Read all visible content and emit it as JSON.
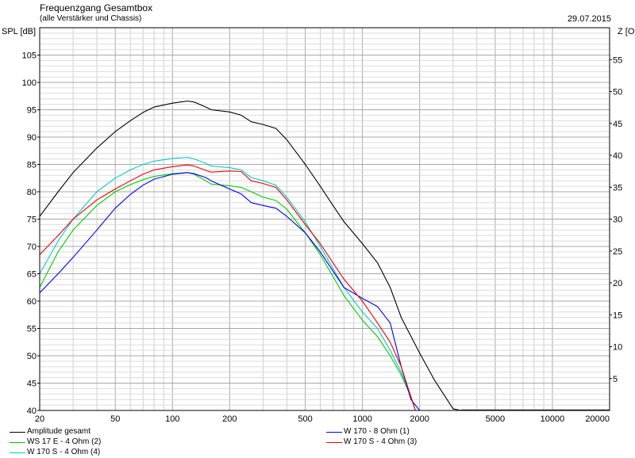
{
  "header": {
    "title": "Frequenzgang Gesamtbox",
    "subtitle": "(alle Verstärker und Chassis)",
    "date": "29.07.2015"
  },
  "chart_data": {
    "type": "line",
    "title": "Frequenzgang Gesamtbox",
    "subtitle": "(alle Verstärker und Chassis)",
    "xlabel": "",
    "ylabel": "SPL [dB]",
    "y2label": "Z [Oh",
    "xscale": "log",
    "xlim": [
      20,
      20000
    ],
    "ylim": [
      40,
      110
    ],
    "y2lim": [
      0,
      60
    ],
    "grid": true,
    "legend_position": "bottom",
    "x_ticks": [
      20,
      50,
      100,
      200,
      500,
      1000,
      2000,
      5000,
      10000,
      20000
    ],
    "y_ticks": [
      40,
      45,
      50,
      55,
      60,
      65,
      70,
      75,
      80,
      85,
      90,
      95,
      100,
      105
    ],
    "y2_ticks": [
      5,
      10,
      15,
      20,
      25,
      30,
      35,
      40,
      45,
      50,
      55
    ],
    "series": [
      {
        "name": "Amplitude gesamt",
        "color": "#000000",
        "points": [
          [
            20,
            75.5
          ],
          [
            25,
            80
          ],
          [
            30,
            83.5
          ],
          [
            40,
            88
          ],
          [
            50,
            91
          ],
          [
            60,
            93
          ],
          [
            70,
            94.5
          ],
          [
            80,
            95.5
          ],
          [
            100,
            96.2
          ],
          [
            120,
            96.6
          ],
          [
            130,
            96.4
          ],
          [
            150,
            95.5
          ],
          [
            160,
            95
          ],
          [
            200,
            94.6
          ],
          [
            230,
            94
          ],
          [
            260,
            92.8
          ],
          [
            300,
            92.3
          ],
          [
            350,
            91.6
          ],
          [
            400,
            89.5
          ],
          [
            500,
            85
          ],
          [
            600,
            81
          ],
          [
            700,
            77.5
          ],
          [
            800,
            74.5
          ],
          [
            1000,
            70.5
          ],
          [
            1200,
            67
          ],
          [
            1400,
            62.5
          ],
          [
            1600,
            57
          ],
          [
            2000,
            50.5
          ],
          [
            2400,
            45.5
          ],
          [
            3000,
            40.3
          ],
          [
            3300,
            40
          ]
        ]
      },
      {
        "name": "WS 17 E - 4 Ohm   (2)",
        "color": "#00cc00",
        "points": [
          [
            20,
            62.5
          ],
          [
            25,
            69
          ],
          [
            30,
            73
          ],
          [
            40,
            77.5
          ],
          [
            50,
            80
          ],
          [
            60,
            81.3
          ],
          [
            70,
            82.2
          ],
          [
            80,
            82.8
          ],
          [
            100,
            83.3
          ],
          [
            120,
            83.5
          ],
          [
            130,
            83.2
          ],
          [
            150,
            82
          ],
          [
            160,
            81.4
          ],
          [
            200,
            81.1
          ],
          [
            230,
            80.8
          ],
          [
            260,
            80
          ],
          [
            300,
            79
          ],
          [
            350,
            78.4
          ],
          [
            400,
            76.8
          ],
          [
            500,
            72.5
          ],
          [
            600,
            68.5
          ],
          [
            700,
            64.5
          ],
          [
            800,
            61
          ],
          [
            1000,
            56.5
          ],
          [
            1200,
            53.5
          ],
          [
            1400,
            50
          ],
          [
            1600,
            46.5
          ],
          [
            1800,
            42.5
          ],
          [
            1900,
            40
          ]
        ]
      },
      {
        "name": "W 170 S - 4 Ohm (4)",
        "color": "#00cccc",
        "points": [
          [
            20,
            65
          ],
          [
            25,
            71
          ],
          [
            30,
            75
          ],
          [
            40,
            80
          ],
          [
            50,
            82.5
          ],
          [
            60,
            84
          ],
          [
            70,
            85
          ],
          [
            80,
            85.6
          ],
          [
            100,
            86.1
          ],
          [
            120,
            86.3
          ],
          [
            130,
            86
          ],
          [
            150,
            85.2
          ],
          [
            160,
            84.7
          ],
          [
            200,
            84.4
          ],
          [
            230,
            84
          ],
          [
            260,
            82.6
          ],
          [
            300,
            82
          ],
          [
            350,
            81.2
          ],
          [
            400,
            79
          ],
          [
            500,
            74.5
          ],
          [
            600,
            70
          ],
          [
            700,
            66
          ],
          [
            800,
            62.5
          ],
          [
            1000,
            58
          ],
          [
            1200,
            55
          ],
          [
            1400,
            51
          ],
          [
            1600,
            47
          ],
          [
            1800,
            42.5
          ],
          [
            1900,
            40
          ]
        ]
      },
      {
        "name": "W 170 - 8 Ohm (1)",
        "color": "#0000ee",
        "points": [
          [
            20,
            61.5
          ],
          [
            25,
            65
          ],
          [
            30,
            68
          ],
          [
            40,
            73
          ],
          [
            50,
            77
          ],
          [
            60,
            79.5
          ],
          [
            70,
            81.2
          ],
          [
            80,
            82.3
          ],
          [
            100,
            83.2
          ],
          [
            120,
            83.5
          ],
          [
            130,
            83.3
          ],
          [
            150,
            82.6
          ],
          [
            160,
            82
          ],
          [
            200,
            80.5
          ],
          [
            230,
            79.6
          ],
          [
            260,
            78
          ],
          [
            300,
            77.5
          ],
          [
            350,
            77
          ],
          [
            400,
            75.5
          ],
          [
            500,
            72.5
          ],
          [
            600,
            69
          ],
          [
            700,
            65.5
          ],
          [
            800,
            62.5
          ],
          [
            1000,
            60.5
          ],
          [
            1200,
            59
          ],
          [
            1400,
            56
          ],
          [
            1600,
            48
          ],
          [
            1800,
            42
          ],
          [
            2000,
            40
          ]
        ]
      },
      {
        "name": "W 170 S - 4 Ohm (3)",
        "color": "#ee0000",
        "points": [
          [
            20,
            68.5
          ],
          [
            25,
            72
          ],
          [
            30,
            75
          ],
          [
            40,
            78.5
          ],
          [
            50,
            80.5
          ],
          [
            60,
            82
          ],
          [
            70,
            83.2
          ],
          [
            80,
            84
          ],
          [
            100,
            84.6
          ],
          [
            120,
            84.9
          ],
          [
            130,
            84.7
          ],
          [
            150,
            83.9
          ],
          [
            160,
            83.6
          ],
          [
            200,
            83.8
          ],
          [
            230,
            83.7
          ],
          [
            260,
            82
          ],
          [
            300,
            81.5
          ],
          [
            350,
            80.8
          ],
          [
            400,
            78.5
          ],
          [
            500,
            74
          ],
          [
            600,
            70.5
          ],
          [
            700,
            67
          ],
          [
            800,
            64
          ],
          [
            1000,
            60
          ],
          [
            1200,
            56
          ],
          [
            1400,
            52.5
          ],
          [
            1600,
            48
          ],
          [
            1800,
            42.5
          ],
          [
            1900,
            40
          ]
        ]
      }
    ]
  },
  "legend": {
    "items": [
      {
        "label": "Amplitude gesamt",
        "color": "#000000"
      },
      {
        "label": "WS 17 E - 4 Ohm   (2)",
        "color": "#00cc00"
      },
      {
        "label": "W 170 S - 4 Ohm (4)",
        "color": "#00cccc"
      },
      {
        "label": "W 170 - 8 Ohm (1)",
        "color": "#0000ee"
      },
      {
        "label": "W 170 S - 4 Ohm (3)",
        "color": "#ee0000"
      }
    ]
  }
}
